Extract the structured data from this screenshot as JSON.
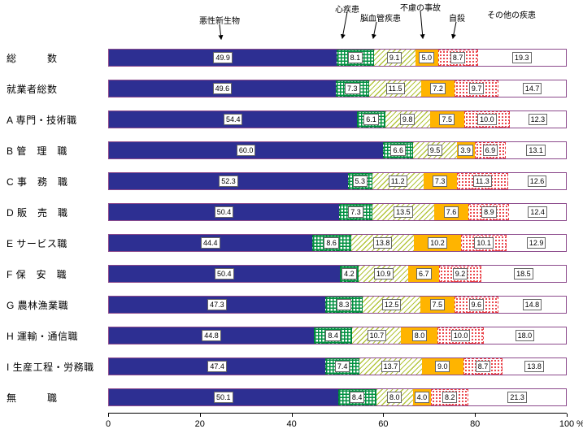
{
  "chart_data": {
    "type": "bar",
    "stacked": true,
    "orientation": "horizontal",
    "unit": "%",
    "xlim": [
      0,
      100
    ],
    "xticks": [
      0,
      20,
      40,
      60,
      80,
      100
    ],
    "percent_label": "%",
    "legend": [
      "悪性新生物",
      "心疾患",
      "脳血管疾患",
      "不慮の事故",
      "自殺",
      "その他の疾患"
    ],
    "legend_position": "top-annotations",
    "grid": false,
    "categories": [
      "総数",
      "就業者総数",
      "A 専門・技術職",
      "B 管理職",
      "C 事務職",
      "D 販売職",
      "E サービス職",
      "F 保安職",
      "G 農林漁業職",
      "H 運輸・通信職",
      "I 生産工程・労務職",
      "無職"
    ],
    "category_display": [
      "総　　　数",
      "就業者総数",
      "A 専門・技術職",
      "B 管　理　職",
      "C 事　務　職",
      "D 販　売　職",
      "E サービス職",
      "F 保　安　職",
      "G 農林漁業職",
      "H 運輸・通信職",
      "I 生産工程・労務職",
      "無　　　職"
    ],
    "series": [
      {
        "name": "悪性新生物",
        "values": [
          49.9,
          49.6,
          54.4,
          60.0,
          52.3,
          50.4,
          44.4,
          50.4,
          47.3,
          44.8,
          47.4,
          50.1
        ]
      },
      {
        "name": "心疾患",
        "values": [
          8.1,
          7.3,
          6.1,
          6.6,
          5.3,
          7.3,
          8.6,
          4.2,
          8.3,
          8.4,
          7.4,
          8.4
        ]
      },
      {
        "name": "脳血管疾患",
        "values": [
          9.1,
          11.5,
          9.8,
          9.5,
          11.2,
          13.5,
          13.8,
          10.9,
          12.5,
          10.7,
          13.7,
          8.0
        ]
      },
      {
        "name": "不慮の事故",
        "values": [
          5.0,
          7.2,
          7.5,
          3.9,
          7.3,
          7.6,
          10.2,
          6.7,
          7.5,
          8.0,
          9.0,
          4.0
        ]
      },
      {
        "name": "自殺",
        "values": [
          8.7,
          9.7,
          10.0,
          6.9,
          11.3,
          8.9,
          10.1,
          9.2,
          9.6,
          10.0,
          8.7,
          8.2
        ]
      },
      {
        "name": "その他の疾患",
        "values": [
          19.3,
          14.7,
          12.3,
          13.1,
          12.6,
          12.4,
          12.9,
          18.5,
          14.8,
          18.0,
          13.8,
          21.3
        ]
      }
    ],
    "colors": {
      "malignant_neoplasm": "#2d2f92",
      "heart_disease_hatch": "#009140",
      "cerebrovascular_hatch": "#b3c53c",
      "accident": "#ffb400",
      "suicide_dots": "#e8373d",
      "other": "#ffffff",
      "bar_border": "#8c4a8c"
    }
  }
}
